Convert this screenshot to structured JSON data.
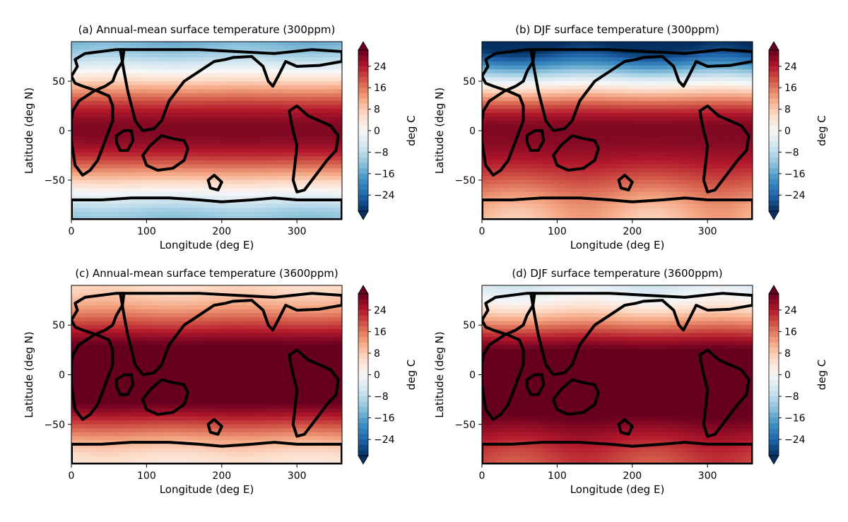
{
  "chart_data": [
    {
      "type": "heatmap",
      "title": "(a) Annual-mean surface temperature (300ppm)",
      "xlabel": "Longitude (deg E)",
      "ylabel": "Latitude (deg N)",
      "xlim": [
        0,
        360
      ],
      "ylim": [
        -90,
        90
      ],
      "xticks": [
        0,
        100,
        200,
        300
      ],
      "yticks": [
        -50,
        0,
        50
      ],
      "colorbar": {
        "label": "deg C",
        "ticks": [
          -24,
          -16,
          -8,
          0,
          8,
          16,
          24
        ],
        "vmin": -30,
        "vmax": 30
      },
      "field": {
        "equator": 28,
        "pole": -14,
        "pole_sh": -12,
        "land_anom": 1
      }
    },
    {
      "type": "heatmap",
      "title": "(b) DJF surface temperature (300ppm)",
      "xlabel": "Longitude (deg E)",
      "ylabel": "Latitude (deg N)",
      "xlim": [
        0,
        360
      ],
      "ylim": [
        -90,
        90
      ],
      "xticks": [
        0,
        100,
        200,
        300
      ],
      "yticks": [
        -50,
        0,
        50
      ],
      "colorbar": {
        "label": "deg C",
        "ticks": [
          -24,
          -16,
          -8,
          0,
          8,
          16,
          24
        ],
        "vmin": -30,
        "vmax": 30
      },
      "field": {
        "equator": 28,
        "pole": -32,
        "pole_sh": 10,
        "land_anom": -3
      }
    },
    {
      "type": "heatmap",
      "title": "(c) Annual-mean surface temperature (3600ppm)",
      "xlabel": "Longitude (deg E)",
      "ylabel": "Latitude (deg N)",
      "xlim": [
        0,
        360
      ],
      "ylim": [
        -90,
        90
      ],
      "xticks": [
        0,
        100,
        200,
        300
      ],
      "yticks": [
        -50,
        0,
        50
      ],
      "colorbar": {
        "label": "deg C",
        "ticks": [
          -24,
          -16,
          -8,
          0,
          8,
          16,
          24
        ],
        "vmin": -30,
        "vmax": 30
      },
      "field": {
        "equator": 36,
        "pole": 6,
        "pole_sh": 4,
        "land_anom": 1
      }
    },
    {
      "type": "heatmap",
      "title": "(d) DJF surface temperature (3600ppm)",
      "xlabel": "Longitude (deg E)",
      "ylabel": "Latitude (deg N)",
      "xlim": [
        0,
        360
      ],
      "ylim": [
        -90,
        90
      ],
      "xticks": [
        0,
        100,
        200,
        300
      ],
      "yticks": [
        -50,
        0,
        50
      ],
      "colorbar": {
        "label": "deg C",
        "ticks": [
          -24,
          -16,
          -8,
          0,
          8,
          16,
          24
        ],
        "vmin": -30,
        "vmax": 30
      },
      "field": {
        "equator": 36,
        "pole": -4,
        "pole_sh": 20,
        "land_anom": -2
      }
    }
  ],
  "colors": {
    "colormap": [
      "#053061",
      "#2166ac",
      "#4393c3",
      "#92c5de",
      "#d1e5f0",
      "#f7f7f7",
      "#fddbc7",
      "#f4a582",
      "#d6604d",
      "#b2182b",
      "#67001f"
    ],
    "coastline": "#000000"
  }
}
